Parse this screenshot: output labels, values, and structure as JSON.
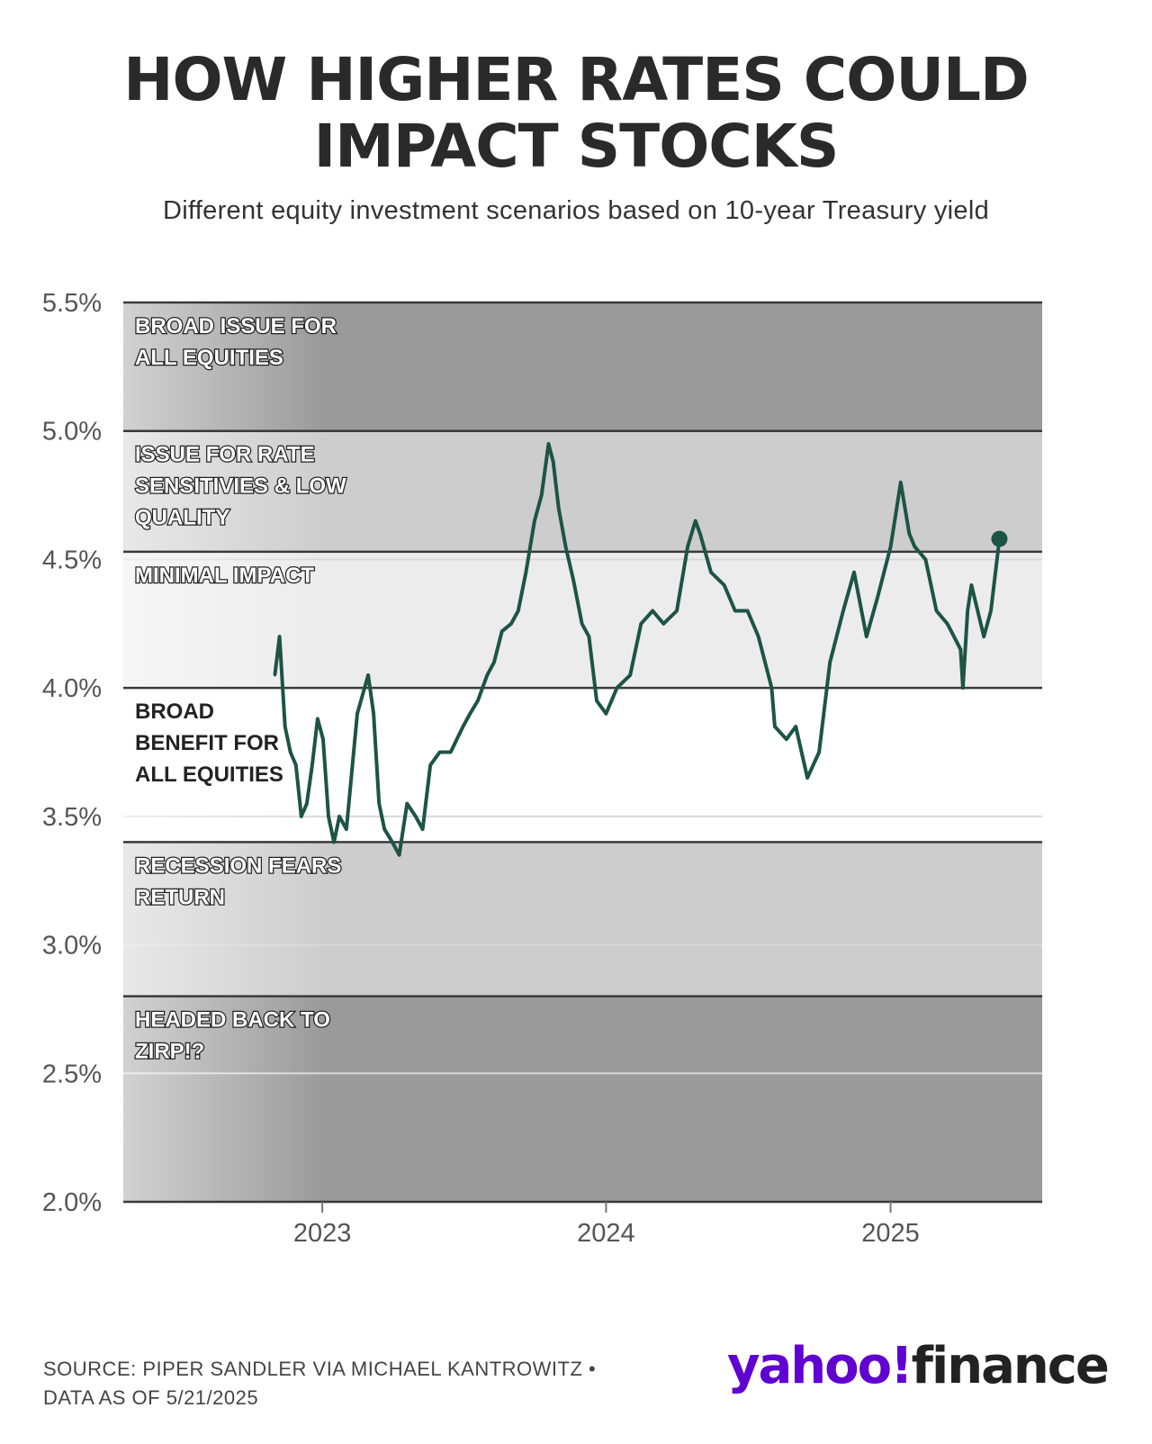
{
  "header": {
    "title_line1": "HOW HIGHER RATES COULD",
    "title_line2": "IMPACT STOCKS",
    "subtitle": "Different equity investment scenarios based on 10-year Treasury yield"
  },
  "footer": {
    "source_line1": "SOURCE: PIPER SANDLER VIA MICHAEL KANTROWITZ •",
    "source_line2": "DATA AS OF 5/21/2025"
  },
  "logo": {
    "brand": "yahoo!",
    "product": "finance",
    "brand_color": "#6001d2"
  },
  "chart_data": {
    "type": "line",
    "title": "HOW HIGHER RATES COULD IMPACT STOCKS",
    "subtitle": "Different equity investment scenarios based on 10-year Treasury yield",
    "xlabel": "",
    "ylabel": "",
    "ylim": [
      2.0,
      5.5
    ],
    "xlim": [
      "2022-04-20",
      "2025-07-15"
    ],
    "y_ticks": [
      "5.5%",
      "5.0%",
      "4.5%",
      "4.0%",
      "3.5%",
      "3.0%",
      "2.5%",
      "2.0%"
    ],
    "y_tick_values": [
      5.5,
      5.0,
      4.5,
      4.0,
      3.5,
      3.0,
      2.5,
      2.0
    ],
    "x_ticks": [
      "2023",
      "2024",
      "2025"
    ],
    "x_tick_dates": [
      "2023-01-01",
      "2024-01-01",
      "2025-01-01"
    ],
    "grid": true,
    "line_color": "#1d5445",
    "zones": [
      {
        "label_lines": [
          "BROAD ISSUE FOR",
          "ALL EQUITIES"
        ],
        "y_from": 5.0,
        "y_to": 5.5,
        "color": "#9a9a9a"
      },
      {
        "label_lines": [
          "ISSUE FOR RATE",
          "SENSITIVIES & LOW",
          "QUALITY"
        ],
        "y_from": 4.53,
        "y_to": 5.0,
        "color": "#cdcdcd"
      },
      {
        "label_lines": [
          "MINIMAL IMPACT"
        ],
        "y_from": 4.0,
        "y_to": 4.53,
        "color": "#ececec"
      },
      {
        "label_lines": [
          "BROAD",
          "BENEFIT FOR",
          "ALL EQUITIES"
        ],
        "y_from": 3.4,
        "y_to": 4.0,
        "color": "#ffffff"
      },
      {
        "label_lines": [
          "RECESSION FEARS",
          "RETURN"
        ],
        "y_from": 2.8,
        "y_to": 3.4,
        "color": "#cdcdcd"
      },
      {
        "label_lines": [
          "HEADED BACK TO",
          "ZIRP!?"
        ],
        "y_from": 2.0,
        "y_to": 2.8,
        "color": "#9a9a9a"
      }
    ],
    "series": [
      {
        "x": [
          "2022-11-01",
          "2022-11-07",
          "2022-11-14",
          "2022-11-21",
          "2022-11-28",
          "2022-12-05",
          "2022-12-12",
          "2022-12-19",
          "2022-12-26",
          "2023-01-02",
          "2023-01-09",
          "2023-01-16",
          "2023-01-23",
          "2023-02-01",
          "2023-02-15",
          "2023-03-01",
          "2023-03-08",
          "2023-03-15",
          "2023-03-22",
          "2023-04-01",
          "2023-04-10",
          "2023-04-20",
          "2023-05-01",
          "2023-05-10",
          "2023-05-20",
          "2023-06-01",
          "2023-06-15",
          "2023-07-01",
          "2023-07-10",
          "2023-07-20",
          "2023-08-01",
          "2023-08-10",
          "2023-08-20",
          "2023-09-01",
          "2023-09-10",
          "2023-09-20",
          "2023-10-01",
          "2023-10-10",
          "2023-10-19",
          "2023-10-25",
          "2023-11-01",
          "2023-11-10",
          "2023-11-20",
          "2023-12-01",
          "2023-12-10",
          "2023-12-20",
          "2024-01-01",
          "2024-01-15",
          "2024-02-01",
          "2024-02-15",
          "2024-03-01",
          "2024-03-15",
          "2024-04-01",
          "2024-04-15",
          "2024-04-25",
          "2024-05-01",
          "2024-05-15",
          "2024-06-01",
          "2024-06-15",
          "2024-07-01",
          "2024-07-15",
          "2024-08-01",
          "2024-08-05",
          "2024-08-20",
          "2024-09-01",
          "2024-09-16",
          "2024-10-01",
          "2024-10-15",
          "2024-11-01",
          "2024-11-15",
          "2024-12-01",
          "2024-12-15",
          "2025-01-01",
          "2025-01-14",
          "2025-01-25",
          "2025-02-01",
          "2025-02-15",
          "2025-03-01",
          "2025-03-15",
          "2025-04-01",
          "2025-04-04",
          "2025-04-10",
          "2025-04-15",
          "2025-05-01",
          "2025-05-10",
          "2025-05-21"
        ],
        "values": [
          4.05,
          4.2,
          3.85,
          3.75,
          3.7,
          3.5,
          3.55,
          3.7,
          3.88,
          3.8,
          3.5,
          3.4,
          3.5,
          3.45,
          3.9,
          4.05,
          3.9,
          3.55,
          3.45,
          3.4,
          3.35,
          3.55,
          3.5,
          3.45,
          3.7,
          3.75,
          3.75,
          3.85,
          3.9,
          3.95,
          4.05,
          4.1,
          4.22,
          4.25,
          4.3,
          4.45,
          4.65,
          4.75,
          4.95,
          4.88,
          4.7,
          4.55,
          4.42,
          4.25,
          4.2,
          3.95,
          3.9,
          4.0,
          4.05,
          4.25,
          4.3,
          4.25,
          4.3,
          4.55,
          4.65,
          4.6,
          4.45,
          4.4,
          4.3,
          4.3,
          4.2,
          4.0,
          3.85,
          3.8,
          3.85,
          3.65,
          3.75,
          4.1,
          4.3,
          4.45,
          4.2,
          4.35,
          4.55,
          4.8,
          4.6,
          4.55,
          4.5,
          4.3,
          4.25,
          4.15,
          4.0,
          4.3,
          4.4,
          4.2,
          4.3,
          4.58
        ]
      }
    ]
  }
}
